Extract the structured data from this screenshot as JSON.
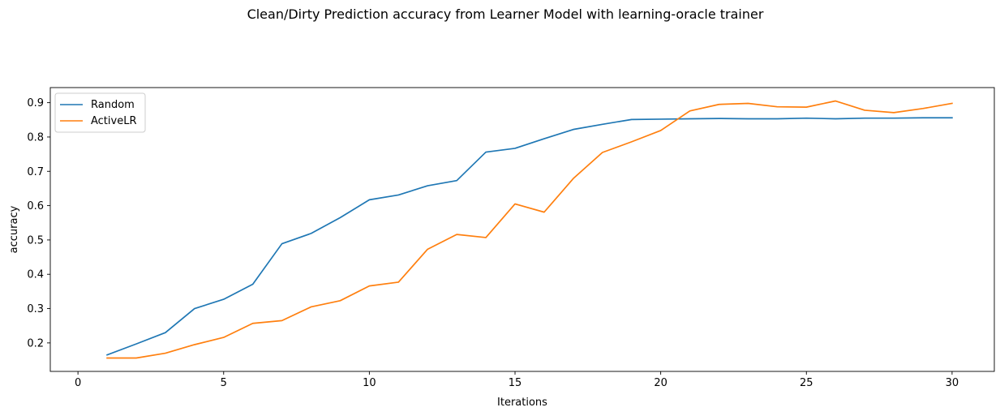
{
  "chart_data": {
    "type": "line",
    "title": "Clean/Dirty Prediction accuracy from Learner Model with learning-oracle trainer",
    "xlabel": "Iterations",
    "ylabel": "accuracy",
    "xlim": [
      -0.95,
      31.45
    ],
    "ylim": [
      0.117,
      0.944
    ],
    "x_ticks": [
      0,
      5,
      10,
      15,
      20,
      25,
      30
    ],
    "x_tick_labels": [
      "0",
      "5",
      "10",
      "15",
      "20",
      "25",
      "30"
    ],
    "y_ticks": [
      0.2,
      0.3,
      0.4,
      0.5,
      0.6,
      0.7,
      0.8,
      0.9
    ],
    "y_tick_labels": [
      "0.2",
      "0.3",
      "0.4",
      "0.5",
      "0.6",
      "0.7",
      "0.8",
      "0.9"
    ],
    "grid": false,
    "legend_position": "upper-left",
    "x": [
      1,
      2,
      3,
      4,
      5,
      6,
      7,
      8,
      9,
      10,
      11,
      12,
      13,
      14,
      15,
      16,
      17,
      18,
      19,
      20,
      21,
      22,
      23,
      24,
      25,
      26,
      27,
      28,
      29,
      30
    ],
    "series": [
      {
        "name": "Random",
        "color": "#1f77b4",
        "values": [
          0.165,
          0.197,
          0.23,
          0.3,
          0.327,
          0.371,
          0.489,
          0.519,
          0.565,
          0.617,
          0.631,
          0.658,
          0.673,
          0.756,
          0.767,
          0.795,
          0.822,
          0.837,
          0.851,
          0.852,
          0.853,
          0.854,
          0.853,
          0.853,
          0.855,
          0.853,
          0.855,
          0.855,
          0.856,
          0.856
        ]
      },
      {
        "name": "ActiveLR",
        "color": "#ff7f0e",
        "values": [
          0.156,
          0.156,
          0.17,
          0.195,
          0.216,
          0.257,
          0.265,
          0.305,
          0.323,
          0.366,
          0.377,
          0.473,
          0.516,
          0.507,
          0.605,
          0.581,
          0.679,
          0.755,
          0.786,
          0.819,
          0.876,
          0.895,
          0.898,
          0.888,
          0.887,
          0.905,
          0.878,
          0.871,
          0.883,
          0.898
        ]
      }
    ]
  }
}
